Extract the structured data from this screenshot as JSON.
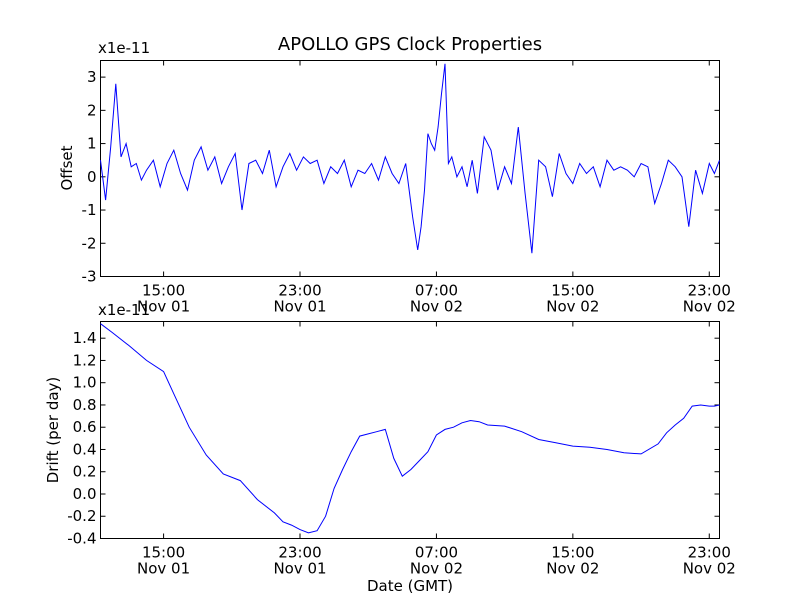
{
  "chart_data": [
    {
      "type": "line",
      "title": "APOLLO GPS Clock Properties",
      "ylabel": "Offset",
      "xlabel": "",
      "exponent_label": "x1e-11",
      "color": "#0000ff",
      "ylim": [
        -3,
        3.5
      ],
      "yticks": [
        -3,
        -2,
        -1,
        0,
        1,
        2,
        3
      ],
      "ytick_labels": [
        "-3",
        "-2",
        "-1",
        "0",
        "1",
        "2",
        "3"
      ],
      "xlim_hours": [
        11.3,
        47.6
      ],
      "xticks_hours": [
        15,
        23,
        31,
        39,
        47
      ],
      "xtick_labels": [
        [
          "15:00",
          "Nov 01"
        ],
        [
          "23:00",
          "Nov 01"
        ],
        [
          "07:00",
          "Nov 02"
        ],
        [
          "15:00",
          "Nov 02"
        ],
        [
          "23:00",
          "Nov 02"
        ]
      ],
      "series": [
        {
          "x_hours": [
            11.3,
            11.6,
            11.9,
            12.2,
            12.5,
            12.8,
            13.1,
            13.4,
            13.7,
            14.0,
            14.4,
            14.8,
            15.2,
            15.6,
            16.0,
            16.4,
            16.8,
            17.2,
            17.6,
            18.0,
            18.4,
            18.8,
            19.2,
            19.6,
            20.0,
            20.4,
            20.8,
            21.2,
            21.6,
            22.0,
            22.4,
            22.8,
            23.2,
            23.6,
            24.0,
            24.4,
            24.8,
            25.2,
            25.6,
            26.0,
            26.4,
            26.8,
            27.2,
            27.6,
            28.0,
            28.4,
            28.8,
            29.2,
            29.6,
            29.9,
            30.1,
            30.3,
            30.5,
            30.7,
            30.9,
            31.1,
            31.3,
            31.5,
            31.7,
            31.9,
            32.2,
            32.5,
            32.8,
            33.1,
            33.4,
            33.8,
            34.2,
            34.6,
            35.0,
            35.4,
            35.8,
            36.2,
            36.6,
            37.0,
            37.4,
            37.8,
            38.2,
            38.6,
            39.0,
            39.4,
            39.8,
            40.2,
            40.6,
            41.0,
            41.4,
            41.8,
            42.2,
            42.6,
            43.0,
            43.4,
            43.8,
            44.2,
            44.6,
            45.0,
            45.4,
            45.8,
            46.2,
            46.6,
            47.0,
            47.3,
            47.6
          ],
          "values": [
            0.5,
            -0.7,
            0.9,
            2.8,
            0.6,
            1.0,
            0.3,
            0.4,
            -0.1,
            0.2,
            0.5,
            -0.3,
            0.4,
            0.8,
            0.1,
            -0.4,
            0.5,
            0.9,
            0.2,
            0.6,
            -0.2,
            0.3,
            0.7,
            -1.0,
            0.4,
            0.5,
            0.1,
            0.8,
            -0.3,
            0.3,
            0.7,
            0.2,
            0.6,
            0.4,
            0.5,
            -0.2,
            0.3,
            0.1,
            0.5,
            -0.3,
            0.2,
            0.1,
            0.4,
            -0.1,
            0.6,
            0.1,
            -0.2,
            0.4,
            -1.2,
            -2.2,
            -1.5,
            -0.4,
            1.3,
            1.0,
            0.8,
            1.5,
            2.5,
            3.4,
            0.4,
            0.6,
            0.0,
            0.3,
            -0.3,
            0.5,
            -0.5,
            1.2,
            0.8,
            -0.4,
            0.3,
            -0.2,
            1.5,
            -0.5,
            -2.3,
            0.5,
            0.3,
            -0.6,
            0.7,
            0.1,
            -0.2,
            0.4,
            0.1,
            0.3,
            -0.3,
            0.5,
            0.2,
            0.3,
            0.2,
            0.0,
            0.4,
            0.3,
            -0.8,
            -0.2,
            0.5,
            0.3,
            0.0,
            -1.5,
            0.2,
            -0.5,
            0.4,
            0.1,
            0.5
          ]
        }
      ]
    },
    {
      "type": "line",
      "title": "",
      "ylabel": "Drift (per day)",
      "xlabel": "Date (GMT)",
      "exponent_label": "x1e-11",
      "color": "#0000ff",
      "ylim": [
        -0.4,
        1.55
      ],
      "yticks": [
        -0.4,
        -0.2,
        0.0,
        0.2,
        0.4,
        0.6,
        0.8,
        1.0,
        1.2,
        1.4
      ],
      "ytick_labels": [
        "-0.4",
        "-0.2",
        "0.0",
        "0.2",
        "0.4",
        "0.6",
        "0.8",
        "1.0",
        "1.2",
        "1.4"
      ],
      "xlim_hours": [
        11.3,
        47.6
      ],
      "xticks_hours": [
        15,
        23,
        31,
        39,
        47
      ],
      "xtick_labels": [
        [
          "15:00",
          "Nov 01"
        ],
        [
          "23:00",
          "Nov 01"
        ],
        [
          "07:00",
          "Nov 02"
        ],
        [
          "15:00",
          "Nov 02"
        ],
        [
          "23:00",
          "Nov 02"
        ]
      ],
      "series": [
        {
          "x_hours": [
            11.3,
            12.0,
            13.0,
            14.0,
            15.0,
            15.6,
            16.5,
            17.5,
            18.5,
            19.5,
            20.5,
            21.5,
            22.0,
            22.5,
            23.0,
            23.5,
            24.0,
            24.5,
            25.0,
            25.5,
            26.0,
            26.5,
            27.0,
            27.5,
            28.0,
            28.5,
            29.0,
            29.5,
            30.0,
            30.5,
            31.0,
            31.5,
            32.0,
            32.5,
            33.0,
            33.5,
            34.0,
            35.0,
            36.0,
            37.0,
            38.0,
            39.0,
            40.0,
            41.0,
            42.0,
            43.0,
            44.0,
            44.5,
            45.0,
            45.5,
            46.0,
            46.5,
            47.0,
            47.3,
            47.6
          ],
          "values": [
            1.53,
            1.45,
            1.33,
            1.2,
            1.1,
            0.9,
            0.6,
            0.35,
            0.18,
            0.12,
            -0.05,
            -0.17,
            -0.25,
            -0.28,
            -0.32,
            -0.35,
            -0.33,
            -0.2,
            0.05,
            0.22,
            0.38,
            0.52,
            0.54,
            0.56,
            0.58,
            0.32,
            0.16,
            0.22,
            0.3,
            0.38,
            0.53,
            0.58,
            0.6,
            0.64,
            0.66,
            0.65,
            0.62,
            0.61,
            0.56,
            0.49,
            0.46,
            0.43,
            0.42,
            0.4,
            0.37,
            0.36,
            0.45,
            0.55,
            0.62,
            0.68,
            0.79,
            0.8,
            0.79,
            0.79,
            0.8
          ]
        }
      ]
    }
  ]
}
